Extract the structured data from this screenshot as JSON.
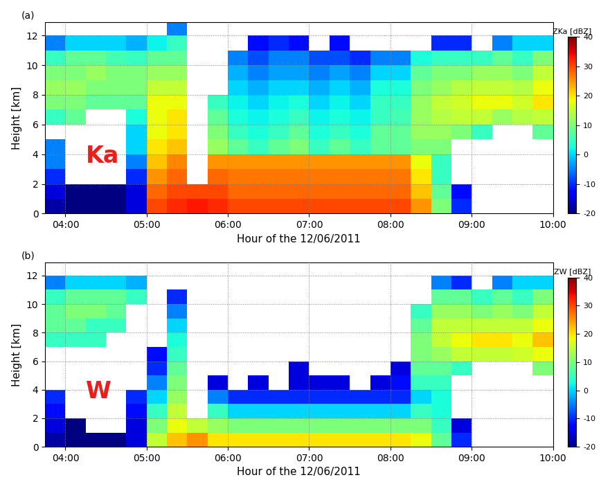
{
  "chart_data": [
    {
      "type": "heatmap",
      "annotations": [
        "(a)",
        "Ka"
      ],
      "xlabel": "Hour of the 12/06/2011",
      "ylabel": "Height [km]",
      "xlim": [
        3.75,
        10.0
      ],
      "ylim": [
        0,
        12.9
      ],
      "xticks": [
        {
          "value": 4,
          "label": "04:00"
        },
        {
          "value": 5,
          "label": "05:00"
        },
        {
          "value": 6,
          "label": "06:00"
        },
        {
          "value": 7,
          "label": "07:00"
        },
        {
          "value": 8,
          "label": "08:00"
        },
        {
          "value": 9,
          "label": "09:00"
        },
        {
          "value": 10,
          "label": "10:00"
        }
      ],
      "yticks": [
        0,
        2,
        4,
        6,
        8,
        10,
        12
      ],
      "grid": true,
      "x_edges": [
        3.75,
        4.0,
        4.25,
        4.5,
        4.75,
        5.0,
        5.25,
        5.5,
        5.75,
        6.0,
        6.25,
        6.5,
        6.75,
        7.0,
        7.25,
        7.5,
        7.75,
        8.0,
        8.25,
        8.5,
        8.75,
        9.0,
        9.25,
        9.5,
        9.75,
        10.0
      ],
      "y_edges": [
        0,
        1,
        2,
        3,
        4,
        5,
        6,
        7,
        8,
        9,
        10,
        11,
        12,
        13
      ],
      "cells": [
        [
          -18,
          -20,
          -20,
          -20,
          -15,
          30,
          32,
          33,
          32,
          30,
          30,
          30,
          30,
          30,
          30,
          30,
          30,
          30,
          25,
          10,
          -10,
          null,
          null,
          null,
          null
        ],
        [
          -15,
          -20,
          -20,
          -20,
          -15,
          28,
          30,
          30,
          30,
          28,
          28,
          28,
          28,
          28,
          28,
          28,
          28,
          28,
          22,
          8,
          -12,
          null,
          null,
          null,
          null
        ],
        [
          -10,
          null,
          null,
          null,
          -10,
          25,
          28,
          null,
          28,
          27,
          27,
          27,
          27,
          27,
          27,
          27,
          27,
          27,
          20,
          5,
          null,
          null,
          null,
          null,
          null
        ],
        [
          -5,
          null,
          null,
          null,
          -5,
          22,
          26,
          null,
          25,
          25,
          25,
          25,
          25,
          25,
          25,
          25,
          25,
          25,
          18,
          5,
          null,
          null,
          null,
          null,
          null
        ],
        [
          -5,
          null,
          null,
          null,
          0,
          20,
          22,
          null,
          12,
          8,
          5,
          8,
          10,
          5,
          8,
          5,
          8,
          8,
          10,
          10,
          null,
          null,
          null,
          null,
          null
        ],
        [
          null,
          null,
          null,
          null,
          0,
          18,
          20,
          null,
          10,
          5,
          3,
          5,
          8,
          3,
          5,
          3,
          8,
          8,
          12,
          12,
          10,
          5,
          null,
          null,
          8
        ],
        [
          5,
          8,
          null,
          null,
          3,
          18,
          20,
          null,
          8,
          3,
          2,
          3,
          5,
          2,
          3,
          2,
          5,
          6,
          12,
          14,
          15,
          15,
          12,
          14,
          15
        ],
        [
          10,
          10,
          8,
          8,
          8,
          18,
          18,
          null,
          5,
          2,
          0,
          2,
          3,
          0,
          2,
          0,
          5,
          5,
          12,
          15,
          16,
          18,
          18,
          16,
          20
        ],
        [
          12,
          12,
          10,
          10,
          10,
          15,
          15,
          null,
          null,
          0,
          -2,
          0,
          0,
          -2,
          0,
          -2,
          3,
          3,
          10,
          12,
          14,
          15,
          15,
          14,
          18
        ],
        [
          10,
          10,
          12,
          10,
          10,
          12,
          12,
          null,
          null,
          -2,
          -5,
          -3,
          -3,
          -5,
          -3,
          -5,
          0,
          0,
          8,
          10,
          10,
          12,
          12,
          10,
          15
        ],
        [
          5,
          8,
          8,
          6,
          5,
          8,
          8,
          null,
          null,
          -5,
          -8,
          -5,
          -5,
          -8,
          -8,
          -10,
          -5,
          -5,
          3,
          5,
          5,
          5,
          8,
          5,
          10
        ],
        [
          -5,
          0,
          0,
          0,
          -2,
          2,
          5,
          null,
          null,
          null,
          -12,
          -10,
          -12,
          null,
          -12,
          null,
          null,
          null,
          null,
          -10,
          -10,
          null,
          -5,
          0,
          0
        ],
        [
          null,
          null,
          null,
          null,
          null,
          null,
          -5,
          null,
          null,
          null,
          null,
          null,
          null,
          null,
          null,
          null,
          null,
          null,
          null,
          null,
          null,
          null,
          null,
          null,
          null
        ]
      ],
      "colorbar": {
        "label": "ZKa [dBZ]",
        "range": [
          -20,
          40
        ],
        "ticks": [
          -20,
          -10,
          0,
          10,
          20,
          30,
          40
        ]
      }
    },
    {
      "type": "heatmap",
      "annotations": [
        "(b)",
        "W"
      ],
      "xlabel": "Hour of the 12/06/2011",
      "ylabel": "Height [km]",
      "xlim": [
        3.75,
        10.0
      ],
      "ylim": [
        0,
        12.9
      ],
      "xticks": [
        {
          "value": 4,
          "label": "04:00"
        },
        {
          "value": 5,
          "label": "05:00"
        },
        {
          "value": 6,
          "label": "06:00"
        },
        {
          "value": 7,
          "label": "07:00"
        },
        {
          "value": 8,
          "label": "08:00"
        },
        {
          "value": 9,
          "label": "09:00"
        },
        {
          "value": 10,
          "label": "10:00"
        }
      ],
      "yticks": [
        0,
        2,
        4,
        6,
        8,
        10,
        12
      ],
      "grid": true,
      "x_edges": [
        3.75,
        4.0,
        4.25,
        4.5,
        4.75,
        5.0,
        5.25,
        5.5,
        5.75,
        6.0,
        6.25,
        6.5,
        6.75,
        7.0,
        7.25,
        7.5,
        7.75,
        8.0,
        8.25,
        8.5,
        8.75,
        9.0,
        9.25,
        9.5,
        9.75,
        10.0
      ],
      "y_edges": [
        0,
        1,
        2,
        3,
        4,
        5,
        6,
        7,
        8,
        9,
        10,
        11,
        12,
        13
      ],
      "cells": [
        [
          -18,
          -20,
          -20,
          -20,
          -15,
          15,
          22,
          25,
          20,
          20,
          20,
          20,
          20,
          20,
          20,
          20,
          20,
          20,
          18,
          8,
          -10,
          null,
          null,
          null,
          null
        ],
        [
          -15,
          -20,
          null,
          null,
          -15,
          10,
          18,
          15,
          12,
          10,
          10,
          10,
          10,
          10,
          10,
          10,
          10,
          10,
          10,
          5,
          -15,
          null,
          null,
          null,
          null
        ],
        [
          -12,
          null,
          null,
          null,
          -12,
          5,
          15,
          null,
          5,
          0,
          0,
          0,
          0,
          0,
          0,
          0,
          0,
          0,
          5,
          3,
          null,
          null,
          null,
          null,
          null
        ],
        [
          -10,
          null,
          null,
          null,
          -10,
          0,
          12,
          null,
          -5,
          -10,
          -10,
          -10,
          -10,
          -10,
          -10,
          -10,
          -10,
          -10,
          0,
          3,
          null,
          null,
          null,
          null,
          null
        ],
        [
          null,
          null,
          null,
          null,
          null,
          -5,
          10,
          null,
          -15,
          null,
          -15,
          null,
          -15,
          -15,
          -15,
          null,
          -15,
          -12,
          5,
          5,
          null,
          null,
          null,
          null,
          null
        ],
        [
          null,
          null,
          null,
          null,
          null,
          -10,
          8,
          null,
          null,
          null,
          null,
          null,
          -15,
          null,
          null,
          null,
          null,
          -15,
          8,
          8,
          5,
          null,
          null,
          null,
          10
        ],
        [
          null,
          null,
          null,
          null,
          null,
          -12,
          5,
          null,
          null,
          null,
          null,
          null,
          null,
          null,
          null,
          null,
          null,
          null,
          10,
          12,
          15,
          15,
          15,
          16,
          18
        ],
        [
          5,
          5,
          5,
          null,
          null,
          null,
          3,
          null,
          null,
          null,
          null,
          null,
          null,
          null,
          null,
          null,
          null,
          null,
          10,
          15,
          18,
          20,
          20,
          18,
          22
        ],
        [
          8,
          8,
          5,
          5,
          null,
          null,
          0,
          null,
          null,
          null,
          null,
          null,
          null,
          null,
          null,
          null,
          null,
          null,
          8,
          15,
          15,
          15,
          15,
          15,
          18
        ],
        [
          8,
          10,
          10,
          8,
          null,
          null,
          -5,
          null,
          null,
          null,
          null,
          null,
          null,
          null,
          null,
          null,
          null,
          null,
          5,
          12,
          12,
          10,
          12,
          10,
          15
        ],
        [
          5,
          8,
          8,
          8,
          5,
          null,
          -10,
          null,
          null,
          null,
          null,
          null,
          null,
          null,
          null,
          null,
          null,
          null,
          null,
          8,
          8,
          5,
          8,
          5,
          10
        ],
        [
          -5,
          0,
          0,
          0,
          -2,
          null,
          null,
          null,
          null,
          null,
          null,
          null,
          null,
          null,
          null,
          null,
          null,
          null,
          null,
          -5,
          -10,
          null,
          -5,
          0,
          0
        ],
        [
          null,
          null,
          null,
          null,
          null,
          null,
          null,
          null,
          null,
          null,
          null,
          null,
          null,
          null,
          null,
          null,
          null,
          null,
          null,
          null,
          null,
          null,
          null,
          null,
          null
        ]
      ],
      "colorbar": {
        "label": "ZW [dBZ]",
        "range": [
          -20,
          40
        ],
        "ticks": [
          -20,
          -10,
          0,
          10,
          20,
          30,
          40
        ]
      }
    }
  ]
}
